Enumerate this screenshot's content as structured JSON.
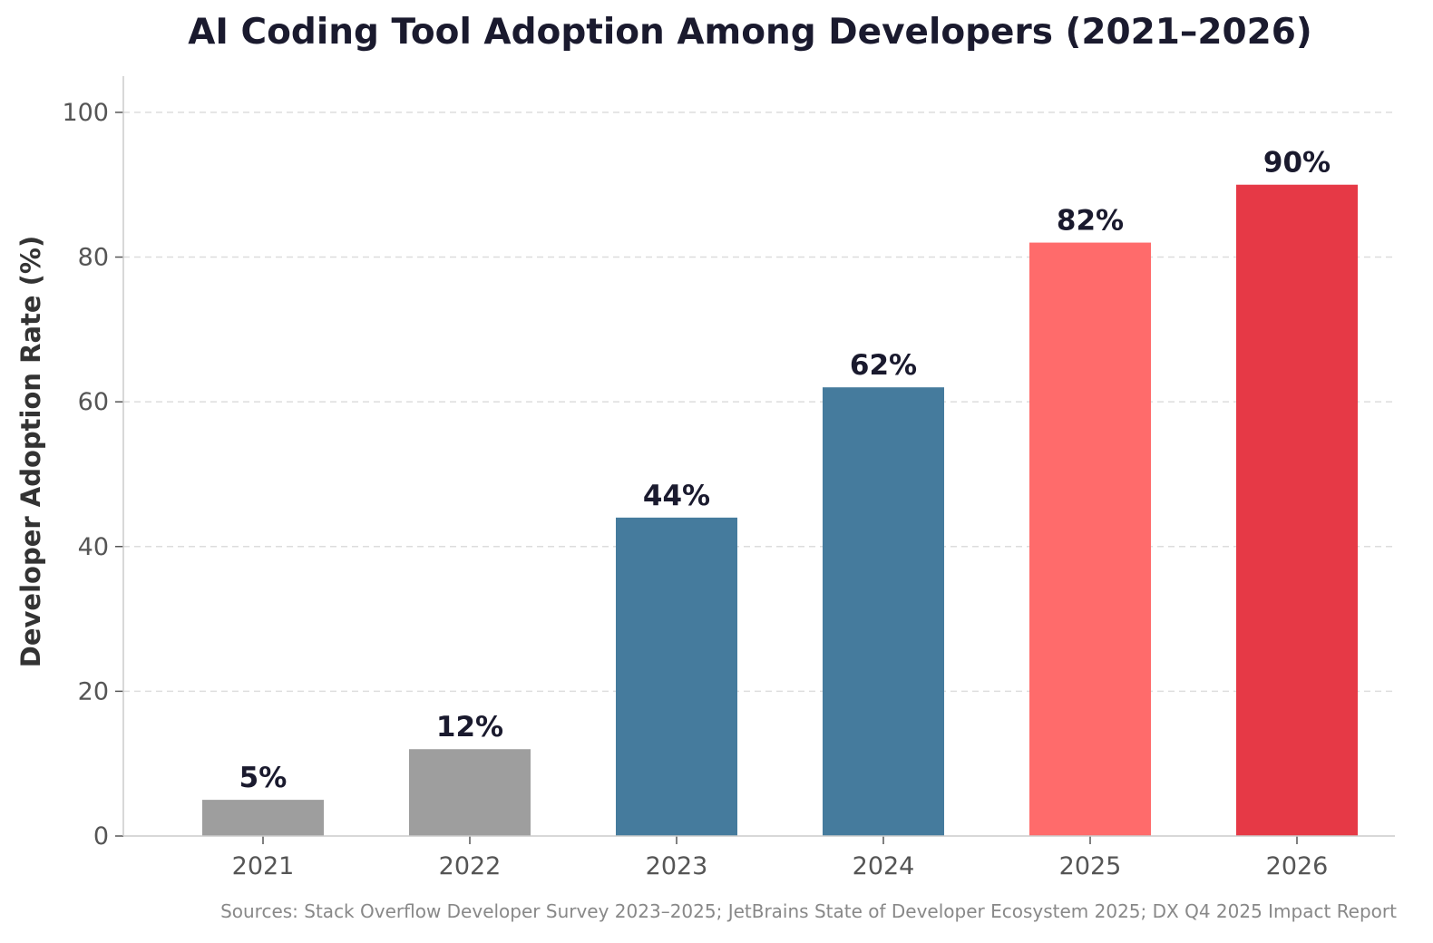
{
  "chart_data": {
    "type": "bar",
    "title": "AI Coding Tool Adoption Among Developers (2021–2026)",
    "ylabel": "Developer Adoption Rate (%)",
    "xlabel": "",
    "categories": [
      "2021",
      "2022",
      "2023",
      "2024",
      "2025",
      "2026"
    ],
    "values": [
      5,
      12,
      44,
      62,
      82,
      90
    ],
    "value_labels": [
      "5%",
      "12%",
      "44%",
      "62%",
      "82%",
      "90%"
    ],
    "bar_colors": [
      "#9e9e9e",
      "#9e9e9e",
      "#457b9d",
      "#457b9d",
      "#ff6b6b",
      "#e63946"
    ],
    "ylim": [
      0,
      105
    ],
    "yticks": [
      0,
      20,
      40,
      60,
      80,
      100
    ],
    "grid": "horizontal-dashed",
    "source_note": "Sources: Stack Overflow Developer Survey 2023–2025; JetBrains State of Developer Ecosystem 2025; DX Q4 2025 Impact Report"
  }
}
